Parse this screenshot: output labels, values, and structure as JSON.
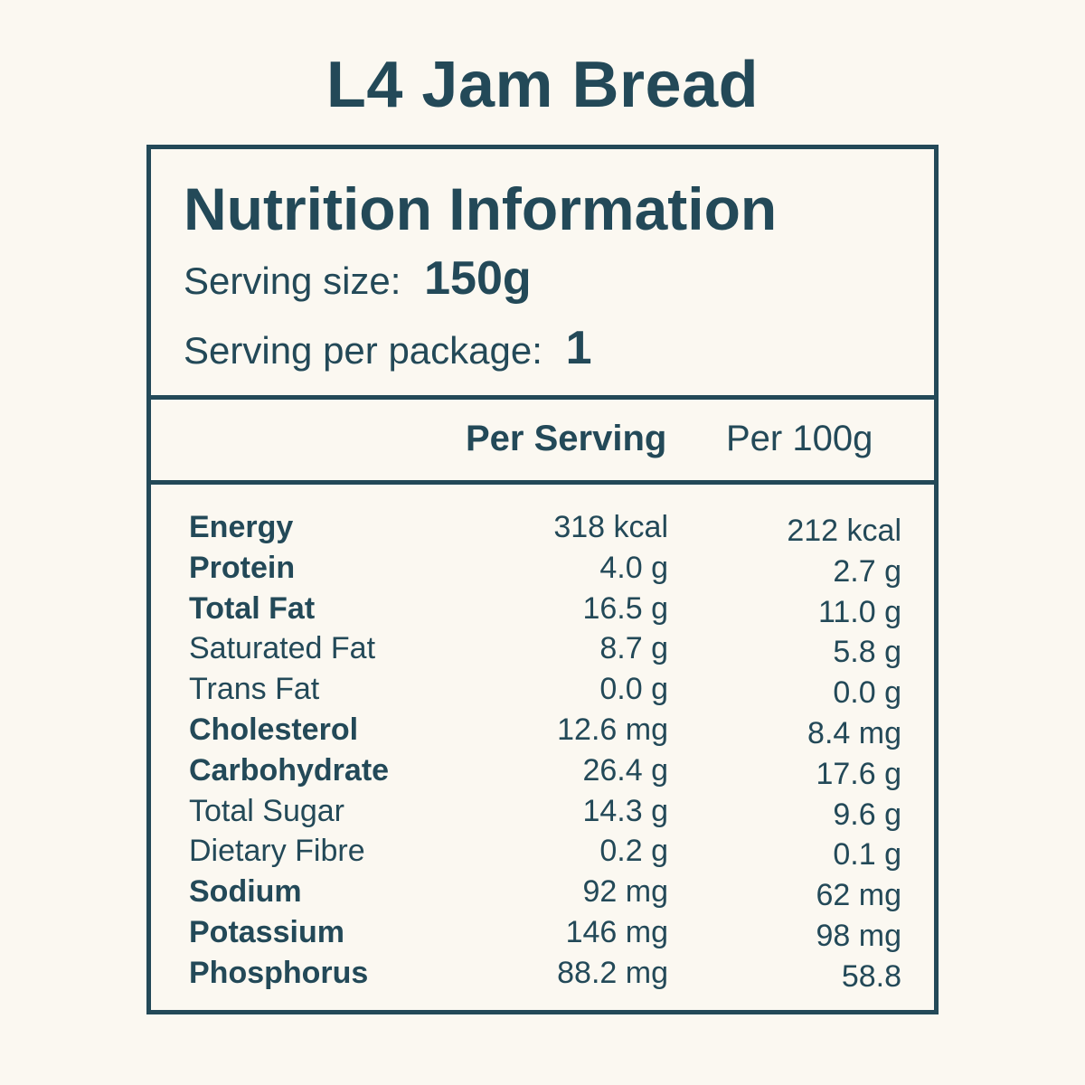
{
  "product": {
    "title": "L4 Jam Bread"
  },
  "label": {
    "heading": "Nutrition Information",
    "serving_size_label": "Serving size:",
    "serving_size_value": "150g",
    "servings_per_package_label": "Serving per package:",
    "servings_per_package_value": "1",
    "columns": {
      "per_serving": "Per Serving",
      "per_100g": "Per 100g"
    },
    "nutrients": [
      {
        "name": "Energy",
        "bold": true,
        "per_serving": "318 kcal",
        "per_100g": "212 kcal"
      },
      {
        "name": "Protein",
        "bold": true,
        "per_serving": "4.0 g",
        "per_100g": "2.7 g"
      },
      {
        "name": "Total Fat",
        "bold": true,
        "per_serving": "16.5 g",
        "per_100g": "11.0 g"
      },
      {
        "name": "Saturated Fat",
        "bold": false,
        "per_serving": "8.7 g",
        "per_100g": "5.8 g"
      },
      {
        "name": "Trans Fat",
        "bold": false,
        "per_serving": "0.0 g",
        "per_100g": "0.0 g"
      },
      {
        "name": "Cholesterol",
        "bold": true,
        "per_serving": "12.6 mg",
        "per_100g": "8.4 mg"
      },
      {
        "name": "Carbohydrate",
        "bold": true,
        "per_serving": "26.4 g",
        "per_100g": "17.6 g"
      },
      {
        "name": "Total Sugar",
        "bold": false,
        "per_serving": "14.3 g",
        "per_100g": "9.6 g"
      },
      {
        "name": "Dietary Fibre",
        "bold": false,
        "per_serving": "0.2 g",
        "per_100g": "0.1 g"
      },
      {
        "name": "Sodium",
        "bold": true,
        "per_serving": "92 mg",
        "per_100g": "62 mg"
      },
      {
        "name": "Potassium",
        "bold": true,
        "per_serving": "146 mg",
        "per_100g": "98 mg"
      },
      {
        "name": "Phosphorus",
        "bold": true,
        "per_serving": "88.2 mg",
        "per_100g": "58.8"
      }
    ]
  },
  "colors": {
    "background": "#fbf8f1",
    "ink": "#234958"
  }
}
